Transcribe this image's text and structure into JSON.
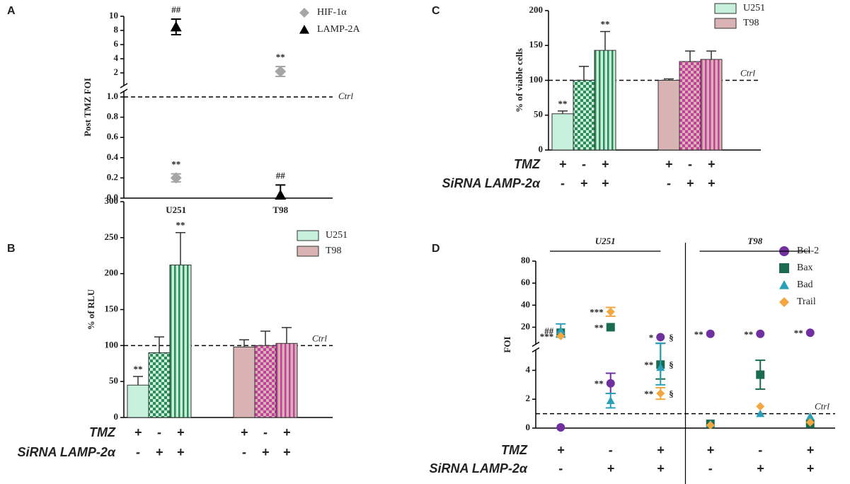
{
  "chart_data": [
    {
      "type": "scatter",
      "panel_label": "A",
      "y_label": "Post TMZ FOI",
      "categories": [
        "U251",
        "T98"
      ],
      "series": [
        {
          "name": "HIF-1α",
          "color": "#a6a6a6",
          "marker": "diamond",
          "values": [
            0.2,
            2.2
          ],
          "errors": [
            0.04,
            0.7
          ],
          "annotations": [
            "**",
            "**"
          ]
        },
        {
          "name": "LAMP-2A",
          "color": "#000000",
          "marker": "triangle",
          "values": [
            8.5,
            0.03
          ],
          "errors": [
            1.1,
            0.1
          ],
          "annotations": [
            "##",
            "##"
          ]
        }
      ],
      "ylim": [
        0,
        10
      ],
      "ybreak": [
        1,
        1
      ],
      "yticks": [
        {
          "value": 0,
          "label": "0.0"
        },
        {
          "value": 0.2,
          "label": "0.2"
        },
        {
          "value": 0.4,
          "label": "0.4"
        },
        {
          "value": 0.6,
          "label": "0.6"
        },
        {
          "value": 0.8,
          "label": "0.8"
        },
        {
          "value": 1,
          "label": "1.0"
        },
        2,
        4,
        6,
        8,
        10
      ],
      "ctrl": {
        "value": 1,
        "label": "Ctrl"
      },
      "legend": "upper right"
    },
    {
      "type": "bar",
      "panel_label": "B",
      "y_label": "% of RLU",
      "ylim": [
        0,
        300
      ],
      "yticks": [
        0,
        50,
        100,
        150,
        200,
        250,
        300
      ],
      "ctrl": {
        "value": 100,
        "label": "Ctrl"
      },
      "patterns": [
        "solid",
        "checker",
        "stripes"
      ],
      "treatments": [
        {
          "label": "TMZ",
          "marks": [
            "+",
            "-",
            "+"
          ]
        },
        {
          "label": "SiRNA LAMP-2α",
          "marks": [
            "-",
            "+",
            "+"
          ]
        }
      ],
      "series": [
        {
          "name": "U251",
          "color": "#c6f0dc",
          "pattern_color": "#2e8b57",
          "values": [
            45,
            90,
            212
          ],
          "errors": [
            12,
            22,
            45
          ],
          "annotations": [
            "**",
            null,
            "**"
          ]
        },
        {
          "name": "T98",
          "color": "#d9b3b3",
          "pattern_color": "#c2409e",
          "values": [
            98,
            100,
            103
          ],
          "errors": [
            10,
            20,
            22
          ],
          "annotations": [
            null,
            null,
            null
          ]
        }
      ],
      "legend": "upper right"
    },
    {
      "type": "bar",
      "panel_label": "C",
      "y_label": "% of viable cells",
      "ylim": [
        0,
        200
      ],
      "yticks": [
        0,
        50,
        100,
        150,
        200
      ],
      "ctrl": {
        "value": 100,
        "label": "Ctrl"
      },
      "patterns": [
        "solid",
        "checker",
        "stripes"
      ],
      "treatments": [
        {
          "label": "TMZ",
          "marks": [
            "+",
            "-",
            "+"
          ]
        },
        {
          "label": "SiRNA LAMP-2α",
          "marks": [
            "-",
            "+",
            "+"
          ]
        }
      ],
      "series": [
        {
          "name": "U251",
          "color": "#c6f0dc",
          "pattern_color": "#2e8b57",
          "values": [
            52,
            100,
            143
          ],
          "errors": [
            4,
            20,
            27
          ],
          "annotations": [
            "**",
            null,
            "**"
          ]
        },
        {
          "name": "T98",
          "color": "#d9b3b3",
          "pattern_color": "#c2409e",
          "values": [
            100,
            127,
            130
          ],
          "errors": [
            2,
            15,
            12
          ],
          "annotations": [
            null,
            null,
            null
          ]
        }
      ],
      "legend": "upper right"
    },
    {
      "type": "scatter",
      "panel_label": "D",
      "y_label": "FOI",
      "categories": [
        null,
        null,
        null,
        null,
        null,
        null
      ],
      "group_labels": [
        "U251",
        "T98"
      ],
      "treatments": [
        {
          "label": "TMZ",
          "marks": [
            "+",
            "-",
            "+"
          ]
        },
        {
          "label": "SiRNA LAMP-2α",
          "marks": [
            "-",
            "+",
            "+"
          ]
        }
      ],
      "series": [
        {
          "name": "Bcl-2",
          "color": "#7030a0",
          "marker": "circle",
          "values": [
            0.05,
            3.1,
            11,
            14,
            14,
            15
          ],
          "errors": [
            null,
            0.7,
            null,
            null,
            null,
            null
          ],
          "annotations": [
            null,
            "**",
            "*",
            "**",
            "**",
            "**"
          ],
          "right_annotations": [
            null,
            null,
            "§",
            null,
            null,
            null
          ]
        },
        {
          "name": "Bax",
          "color": "#1a6b50",
          "marker": "square",
          "values": [
            15,
            20,
            4.4,
            0.3,
            3.7,
            0.3
          ],
          "errors": [
            null,
            null,
            1.0,
            null,
            1.0,
            null
          ],
          "annotations": [
            null,
            "**",
            "**",
            null,
            null,
            null
          ],
          "right_annotations": [
            null,
            null,
            "§",
            null,
            null,
            null
          ]
        },
        {
          "name": "Bad",
          "color": "#2aa0b8",
          "marker": "triangle",
          "values": [
            17,
            1.9,
            4.2,
            0.3,
            1.0,
            0.8
          ],
          "errors": [
            6,
            0.5,
            1.2,
            null,
            null,
            null
          ],
          "annotations": [
            "##",
            null,
            null,
            null,
            null,
            null
          ],
          "right_annotations": [
            null,
            null,
            null,
            null,
            null,
            null
          ]
        },
        {
          "name": "Trail",
          "color": "#f4a640",
          "marker": "diamond",
          "values": [
            12,
            34,
            2.4,
            0.2,
            1.5,
            0.4
          ],
          "errors": [
            null,
            4,
            0.4,
            null,
            null,
            null
          ],
          "annotations": [
            "***",
            "***",
            "**",
            null,
            null,
            null
          ],
          "right_annotations": [
            null,
            null,
            "§",
            null,
            null,
            null
          ]
        }
      ],
      "ylim": [
        0,
        80
      ],
      "ybreak": [
        5,
        10
      ],
      "yticks": [
        0,
        2,
        4,
        20,
        40,
        60,
        80
      ],
      "ctrl": {
        "value": 1,
        "label": "Ctrl"
      },
      "legend": "upper right"
    }
  ]
}
